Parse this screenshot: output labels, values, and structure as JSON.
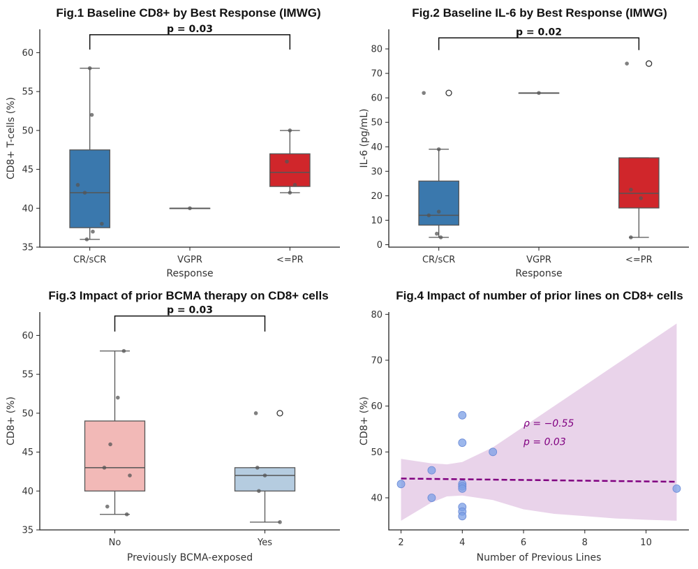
{
  "chart_data": [
    {
      "id": "fig1",
      "type": "box",
      "title": "Fig.1 Baseline CD8+ by Best Response (IMWG)",
      "xlabel": "Response",
      "ylabel": "CD8+ T-cells (%)",
      "ylim": [
        35,
        63
      ],
      "yticks": [
        35,
        40,
        45,
        50,
        55,
        60
      ],
      "categories": [
        "CR/sCR",
        "VGPR",
        "<=PR"
      ],
      "colors": [
        "#3a78ad",
        "#3a78ad",
        "#d0262b"
      ],
      "boxes": [
        {
          "q1": 37.5,
          "median": 42,
          "q3": 47.5,
          "whislo": 36,
          "whishi": 58,
          "fliers": []
        },
        {
          "q1": 40,
          "median": 40,
          "q3": 40,
          "whislo": 40,
          "whishi": 40,
          "fliers": []
        },
        {
          "q1": 42.8,
          "median": 44.6,
          "q3": 47,
          "whislo": 42,
          "whishi": 50,
          "fliers": []
        }
      ],
      "points": [
        [
          58,
          52,
          43,
          42,
          38,
          37,
          36
        ],
        [
          40
        ],
        [
          50,
          46,
          43,
          42
        ]
      ],
      "jitter": [
        [
          0,
          0.02,
          -0.12,
          -0.05,
          0.12,
          0.03,
          -0.03
        ],
        [
          0
        ],
        [
          0,
          -0.03,
          0.05,
          0
        ]
      ],
      "significance": {
        "from": 0,
        "to": 2,
        "label": "p = 0.03",
        "y": 62.3,
        "drop": 1.9
      }
    },
    {
      "id": "fig2",
      "type": "box",
      "title": "Fig.2 Baseline IL-6 by Best Response (IMWG)",
      "xlabel": "Response",
      "ylabel": "IL-6 (pg/mL)",
      "ylim": [
        -1,
        88
      ],
      "yticks": [
        0,
        10,
        20,
        30,
        40,
        50,
        60,
        70,
        80
      ],
      "categories": [
        "CR/sCR",
        "VGPR",
        "<=PR"
      ],
      "colors": [
        "#3a78ad",
        "#3a78ad",
        "#d0262b"
      ],
      "boxes": [
        {
          "q1": 8,
          "median": 12,
          "q3": 26,
          "whislo": 3,
          "whishi": 39,
          "fliers": [
            62
          ]
        },
        {
          "q1": 62,
          "median": 62,
          "q3": 62,
          "whislo": 62,
          "whishi": 62,
          "fliers": []
        },
        {
          "q1": 15,
          "median": 21,
          "q3": 35.5,
          "whislo": 3,
          "whishi": 35.5,
          "fliers": [
            74
          ]
        }
      ],
      "points": [
        [
          62,
          39,
          13.5,
          12,
          4.5,
          3
        ],
        [
          62
        ],
        [
          74,
          22.5,
          19,
          3
        ]
      ],
      "jitter": [
        [
          -0.15,
          0,
          0,
          -0.1,
          -0.02,
          0.02
        ],
        [
          0
        ],
        [
          -0.12,
          -0.08,
          0.02,
          -0.08
        ]
      ],
      "significance": {
        "from": 0,
        "to": 2,
        "label": "p = 0.02",
        "y": 84.5,
        "drop": 5
      }
    },
    {
      "id": "fig3",
      "type": "box",
      "title": "Fig.3 Impact of prior BCMA therapy on CD8+ cells",
      "xlabel": "Previously BCMA-exposed",
      "ylabel": "CD8+ (%)",
      "ylim": [
        35,
        63
      ],
      "yticks": [
        35,
        40,
        45,
        50,
        55,
        60
      ],
      "categories": [
        "No",
        "Yes"
      ],
      "colors": [
        "#f2b9b7",
        "#b5cce0"
      ],
      "boxes": [
        {
          "q1": 40,
          "median": 43,
          "q3": 49,
          "whislo": 37,
          "whishi": 58,
          "fliers": []
        },
        {
          "q1": 40,
          "median": 42,
          "q3": 43,
          "whislo": 36,
          "whishi": 43,
          "fliers": [
            50
          ]
        }
      ],
      "points": [
        [
          58,
          52,
          46,
          43,
          42,
          38,
          37
        ],
        [
          50,
          43,
          42,
          40,
          36
        ]
      ],
      "jitter": [
        [
          0.06,
          0.02,
          -0.03,
          -0.07,
          0.1,
          -0.05,
          0.08
        ],
        [
          -0.06,
          -0.05,
          0,
          -0.04,
          0.1
        ]
      ],
      "significance": {
        "from": 0,
        "to": 1,
        "label": "p = 0.03",
        "y": 62.5,
        "drop": 2
      }
    },
    {
      "id": "fig4",
      "type": "scatter",
      "title": "Fig.4 Impact of number of prior lines on CD8+ cells",
      "xlabel": "Number of Previous Lines",
      "ylabel": "CD8+ (%)",
      "xlim": [
        1.6,
        11.4
      ],
      "ylim": [
        33,
        80.5
      ],
      "xticks": [
        2,
        4,
        6,
        8,
        10
      ],
      "yticks": [
        40,
        50,
        60,
        70,
        80
      ],
      "x": [
        2,
        3,
        3,
        4,
        4,
        4,
        4,
        4,
        4,
        4,
        4,
        5,
        11
      ],
      "y": [
        43,
        46,
        40,
        58,
        52,
        43,
        42.5,
        42,
        38,
        37,
        36,
        50,
        42
      ],
      "regression": {
        "x": [
          2,
          11
        ],
        "y": [
          44.2,
          43.5
        ],
        "color": "#800080"
      },
      "ci_band": {
        "x": [
          2,
          2.5,
          3,
          3.5,
          4,
          5,
          6,
          7,
          8,
          9,
          10,
          11
        ],
        "upper": [
          48.5,
          48,
          47.5,
          47.3,
          47.8,
          51,
          55.5,
          60,
          64.5,
          69,
          73.5,
          78
        ],
        "lower": [
          35,
          37,
          39,
          40.3,
          40.5,
          39.5,
          37.5,
          36.5,
          36,
          35.5,
          35.2,
          35
        ],
        "color": "#e9d3ea"
      },
      "annotations": [
        "ρ = −0.55",
        "p = 0.03"
      ],
      "point_color": "#7b9fe6"
    }
  ]
}
